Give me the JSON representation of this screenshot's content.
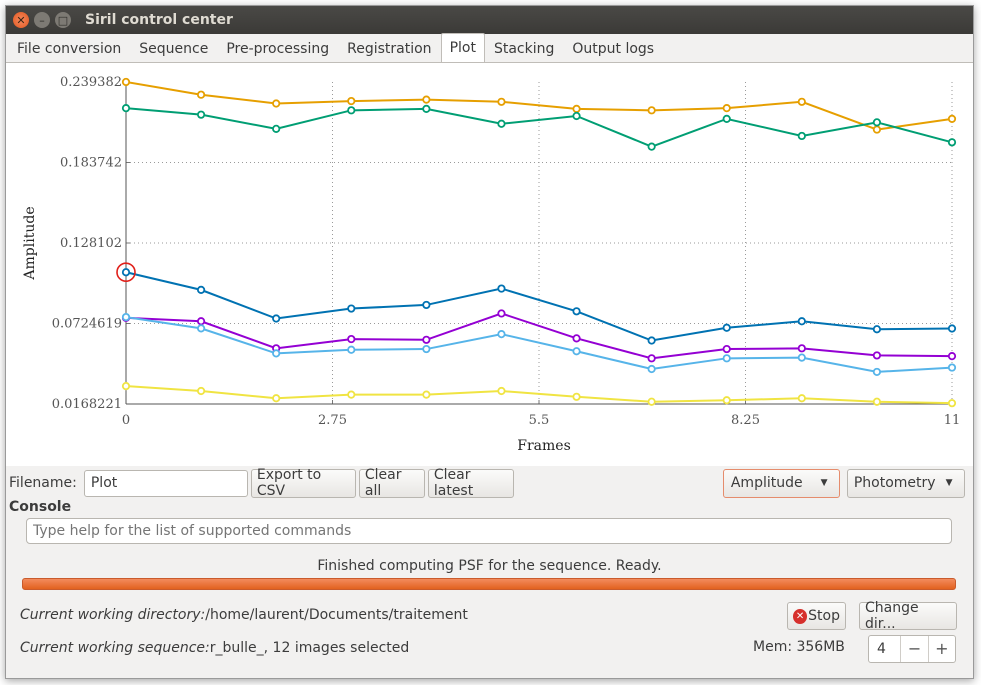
{
  "window": {
    "title": "Siril control center"
  },
  "tabs": [
    {
      "label": "File conversion"
    },
    {
      "label": "Sequence"
    },
    {
      "label": "Pre-processing"
    },
    {
      "label": "Registration"
    },
    {
      "label": "Plot"
    },
    {
      "label": "Stacking"
    },
    {
      "label": "Output logs"
    }
  ],
  "active_tab": "Plot",
  "chart_data": {
    "type": "line",
    "xlabel": "Frames",
    "ylabel": "Amplitude",
    "xlim": [
      0,
      11
    ],
    "ylim": [
      0.0168221,
      0.239382
    ],
    "x_ticks": [
      "0",
      "2.75",
      "5.5",
      "8.25",
      "11"
    ],
    "y_ticks": [
      "0.239382",
      "0.183742",
      "0.128102",
      "0.0724619",
      "0.0168221"
    ],
    "grid": true,
    "x": [
      0,
      1,
      2,
      3,
      4,
      5,
      6,
      7,
      8,
      9,
      10,
      11
    ],
    "series": [
      {
        "color": "#e69f00",
        "values": [
          0.2394,
          0.2306,
          0.2245,
          0.2262,
          0.2272,
          0.2257,
          0.2208,
          0.2198,
          0.2213,
          0.2257,
          0.2065,
          0.2139
        ]
      },
      {
        "color": "#009e73",
        "values": [
          0.2213,
          0.2168,
          0.207,
          0.2198,
          0.2208,
          0.2105,
          0.2159,
          0.1947,
          0.2139,
          0.2021,
          0.2115,
          0.1977
        ]
      },
      {
        "color": "#0072b2",
        "values": [
          0.1079,
          0.0957,
          0.0759,
          0.0828,
          0.0853,
          0.0966,
          0.0809,
          0.0607,
          0.0695,
          0.074,
          0.0685,
          0.069
        ]
      },
      {
        "color": "#9400d3",
        "values": [
          0.0764,
          0.074,
          0.0553,
          0.0617,
          0.0612,
          0.0794,
          0.0622,
          0.0484,
          0.0548,
          0.0553,
          0.0504,
          0.0499
        ]
      },
      {
        "color": "#56b4e9",
        "values": [
          0.0769,
          0.0691,
          0.0518,
          0.0543,
          0.0548,
          0.0651,
          0.0533,
          0.041,
          0.0484,
          0.0489,
          0.039,
          0.042
        ]
      },
      {
        "color": "#f0e442",
        "values": [
          0.0292,
          0.0258,
          0.0208,
          0.0233,
          0.0233,
          0.0258,
          0.0218,
          0.0184,
          0.0194,
          0.0208,
          0.0184,
          0.0174
        ]
      }
    ],
    "highlighted_point": {
      "series": 2,
      "index": 0
    }
  },
  "plot_toolbar": {
    "filename_label": "Filename:",
    "filename_value": "Plot",
    "export_csv": "Export to CSV",
    "clear_all": "Clear all",
    "clear_latest": "Clear latest",
    "amplitude_select": "Amplitude",
    "photometry_select": "Photometry"
  },
  "console": {
    "title": "Console",
    "placeholder": "Type help for the list of supported commands",
    "status": "Finished computing PSF for the sequence. Ready.",
    "progress": 1.0
  },
  "footer": {
    "cwd_label": "Current working directory:",
    "cwd_value": "/home/laurent/Documents/traitement",
    "seq_label": "Current working sequence:",
    "seq_value": "r_bulle_, 12 images selected",
    "stop": "Stop",
    "change_dir": "Change dir...",
    "mem": "Mem: 356MB",
    "threads": "4",
    "minus": "−",
    "plus": "+"
  },
  "icons": {
    "close": "close-icon",
    "minimize": "minimize-icon",
    "maximize": "maximize-icon",
    "stop": "stop-icon",
    "dropdown": "chevron-down-icon"
  }
}
